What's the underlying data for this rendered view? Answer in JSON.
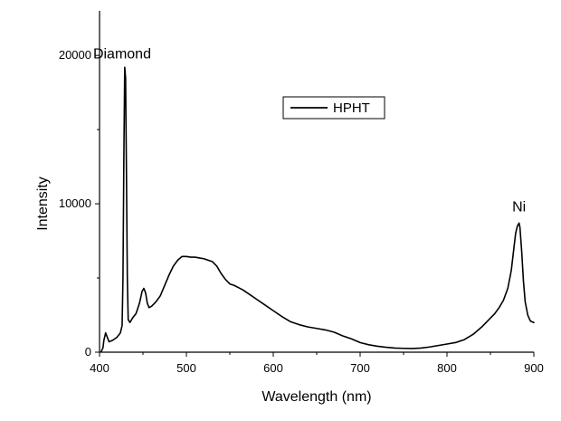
{
  "chart_data": {
    "type": "line",
    "title": "",
    "xlabel": "Wavelength (nm)",
    "ylabel": "Intensity",
    "xlim": [
      400,
      900
    ],
    "ylim": [
      0,
      23000
    ],
    "x_ticks": [
      400,
      500,
      600,
      700,
      800,
      900
    ],
    "y_ticks": [
      0,
      10000,
      20000
    ],
    "grid": false,
    "legend": {
      "placement": "top-center",
      "entries": [
        "HPHT"
      ]
    },
    "annotations": [
      {
        "text": "Diamond",
        "x": 426,
        "y": 19800
      },
      {
        "text": "Ni",
        "x": 883,
        "y": 9500
      }
    ],
    "series": [
      {
        "name": "HPHT",
        "color": "#000000",
        "points": [
          [
            402,
            50
          ],
          [
            404,
            300
          ],
          [
            405,
            800
          ],
          [
            407,
            1300
          ],
          [
            409,
            1000
          ],
          [
            411,
            700
          ],
          [
            415,
            800
          ],
          [
            420,
            1000
          ],
          [
            424,
            1300
          ],
          [
            426,
            1800
          ],
          [
            427,
            5000
          ],
          [
            428,
            13000
          ],
          [
            429,
            19200
          ],
          [
            430,
            18500
          ],
          [
            431,
            12000
          ],
          [
            432,
            5000
          ],
          [
            433,
            2200
          ],
          [
            435,
            2000
          ],
          [
            438,
            2300
          ],
          [
            442,
            2600
          ],
          [
            446,
            3300
          ],
          [
            449,
            4100
          ],
          [
            451,
            4300
          ],
          [
            453,
            4000
          ],
          [
            455,
            3300
          ],
          [
            457,
            3000
          ],
          [
            460,
            3100
          ],
          [
            465,
            3400
          ],
          [
            470,
            3800
          ],
          [
            475,
            4500
          ],
          [
            480,
            5200
          ],
          [
            485,
            5800
          ],
          [
            490,
            6200
          ],
          [
            495,
            6450
          ],
          [
            500,
            6450
          ],
          [
            505,
            6400
          ],
          [
            510,
            6400
          ],
          [
            515,
            6350
          ],
          [
            520,
            6300
          ],
          [
            525,
            6200
          ],
          [
            530,
            6100
          ],
          [
            535,
            5800
          ],
          [
            540,
            5300
          ],
          [
            545,
            4900
          ],
          [
            550,
            4600
          ],
          [
            555,
            4500
          ],
          [
            560,
            4350
          ],
          [
            565,
            4200
          ],
          [
            570,
            4000
          ],
          [
            575,
            3800
          ],
          [
            580,
            3600
          ],
          [
            590,
            3200
          ],
          [
            600,
            2800
          ],
          [
            610,
            2400
          ],
          [
            620,
            2050
          ],
          [
            630,
            1850
          ],
          [
            640,
            1700
          ],
          [
            650,
            1600
          ],
          [
            660,
            1500
          ],
          [
            670,
            1350
          ],
          [
            680,
            1100
          ],
          [
            690,
            900
          ],
          [
            700,
            650
          ],
          [
            710,
            500
          ],
          [
            720,
            400
          ],
          [
            730,
            330
          ],
          [
            740,
            280
          ],
          [
            750,
            260
          ],
          [
            760,
            250
          ],
          [
            770,
            280
          ],
          [
            780,
            350
          ],
          [
            790,
            450
          ],
          [
            800,
            550
          ],
          [
            810,
            650
          ],
          [
            820,
            850
          ],
          [
            830,
            1200
          ],
          [
            840,
            1700
          ],
          [
            850,
            2300
          ],
          [
            855,
            2600
          ],
          [
            860,
            3000
          ],
          [
            865,
            3500
          ],
          [
            870,
            4300
          ],
          [
            874,
            5500
          ],
          [
            877,
            7000
          ],
          [
            879,
            8000
          ],
          [
            881,
            8500
          ],
          [
            883,
            8700
          ],
          [
            884,
            8400
          ],
          [
            886,
            6800
          ],
          [
            888,
            4800
          ],
          [
            890,
            3400
          ],
          [
            893,
            2500
          ],
          [
            896,
            2100
          ],
          [
            900,
            2000
          ]
        ]
      }
    ]
  }
}
